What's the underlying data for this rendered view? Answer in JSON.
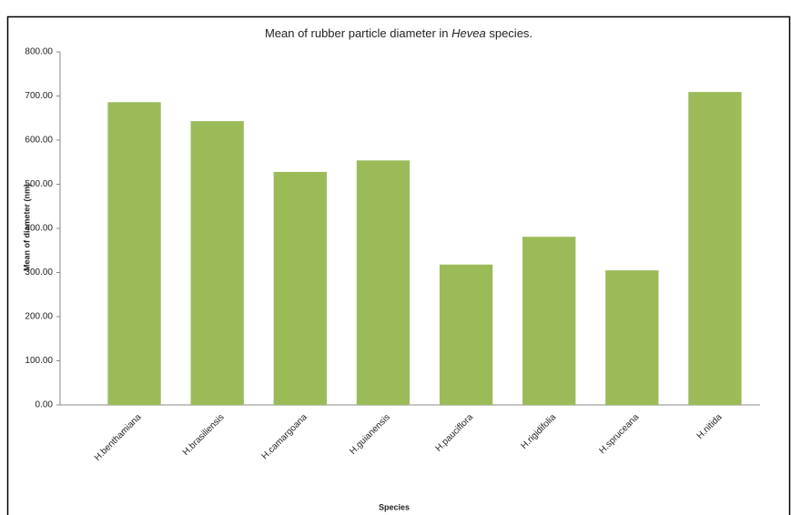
{
  "chart_data": {
    "type": "bar",
    "title": [
      "Mean of rubber particle diameter in ",
      "Hevea",
      " species."
    ],
    "x_label": "Species",
    "y_label": "Mean of diameter (nm)",
    "categories": [
      "H.benthamiana",
      "H.brasiliensis",
      "H.camargoana",
      "H.guianensis",
      "H.pauciflora",
      "H.rigidifolia",
      "H.spruceana",
      "H.nitida"
    ],
    "values": [
      686,
      643,
      528,
      554,
      318,
      381,
      305,
      709
    ],
    "color": "#9bbb59",
    "ylim": [
      0,
      800
    ],
    "yticks": [
      {
        "value": 0,
        "label": "0.00"
      },
      {
        "value": 100,
        "label": "100.00"
      },
      {
        "value": 200,
        "label": "200.00"
      },
      {
        "value": 300,
        "label": "300.00"
      },
      {
        "value": 400,
        "label": "400.00"
      },
      {
        "value": 500,
        "label": "500.00"
      },
      {
        "value": 600,
        "label": "600.00"
      },
      {
        "value": 700,
        "label": "700.00"
      },
      {
        "value": 800,
        "label": "800.00"
      }
    ],
    "grid": false
  }
}
